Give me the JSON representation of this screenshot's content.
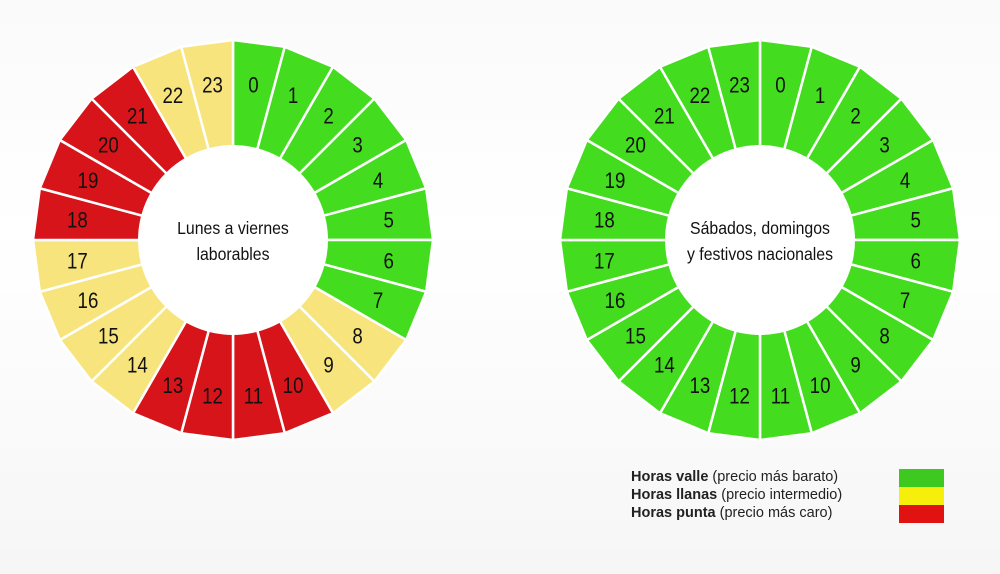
{
  "chart_data": [
    {
      "type": "donut",
      "title": "Lunes a viernes laborables",
      "title_lines": [
        "Lunes a viernes",
        "laborables"
      ],
      "hours": [
        0,
        1,
        2,
        3,
        4,
        5,
        6,
        7,
        8,
        9,
        10,
        11,
        12,
        13,
        14,
        15,
        16,
        17,
        18,
        19,
        20,
        21,
        22,
        23
      ],
      "period": [
        "valle",
        "valle",
        "valle",
        "valle",
        "valle",
        "valle",
        "valle",
        "valle",
        "llana",
        "llana",
        "punta",
        "punta",
        "punta",
        "punta",
        "llana",
        "llana",
        "llana",
        "llana",
        "punta",
        "punta",
        "punta",
        "punta",
        "llana",
        "llana"
      ]
    },
    {
      "type": "donut",
      "title": "Sábados, domingos y festivos nacionales",
      "title_lines": [
        "Sábados, domingos",
        "y festivos nacionales"
      ],
      "hours": [
        0,
        1,
        2,
        3,
        4,
        5,
        6,
        7,
        8,
        9,
        10,
        11,
        12,
        13,
        14,
        15,
        16,
        17,
        18,
        19,
        20,
        21,
        22,
        23
      ],
      "period": [
        "valle",
        "valle",
        "valle",
        "valle",
        "valle",
        "valle",
        "valle",
        "valle",
        "valle",
        "valle",
        "valle",
        "valle",
        "valle",
        "valle",
        "valle",
        "valle",
        "valle",
        "valle",
        "valle",
        "valle",
        "valle",
        "valle",
        "valle",
        "valle"
      ]
    }
  ],
  "colors": {
    "valle": "#44dc1f",
    "llana": "#f8e47c",
    "punta": "#d7141a"
  },
  "legend": [
    {
      "bold": "Horas valle",
      "text": " (precio más barato)",
      "color": "#3ec920"
    },
    {
      "bold": "Horas llanas",
      "text": " (precio intermedio)",
      "color": "#f6ef0c"
    },
    {
      "bold": "Horas punta",
      "text": " (precio más caro)",
      "color": "#e01212"
    }
  ]
}
